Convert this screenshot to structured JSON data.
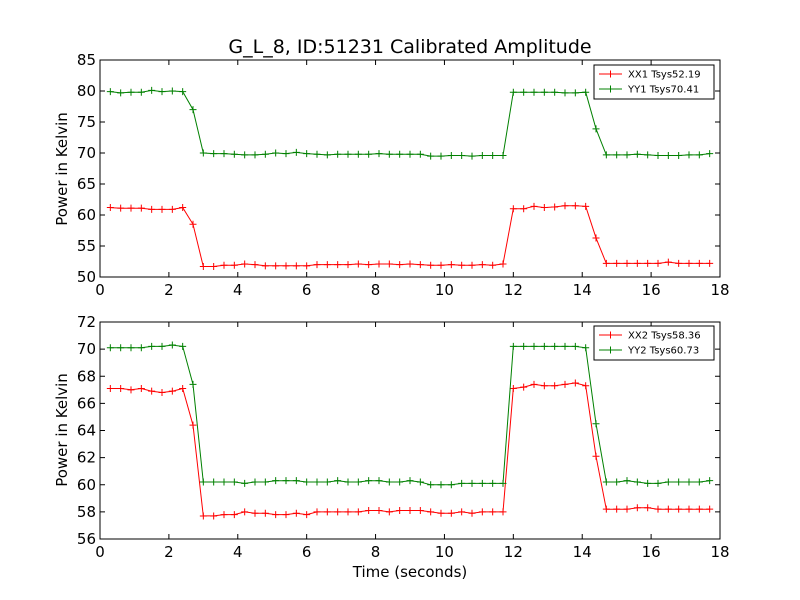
{
  "chart_data": [
    {
      "type": "line",
      "title": "G_L_8, ID:51231 Calibrated Amplitude",
      "xlabel": "",
      "ylabel": "Power in Kelvin",
      "xlim": [
        0,
        18
      ],
      "ylim": [
        50,
        85
      ],
      "xticks": [
        0,
        2,
        4,
        6,
        8,
        10,
        12,
        14,
        16,
        18
      ],
      "yticks": [
        50,
        55,
        60,
        65,
        70,
        75,
        80,
        85
      ],
      "legend_position": "top-right",
      "series": [
        {
          "name": "XX1 Tsys52.19",
          "color": "#ff0000",
          "x": [
            0.3,
            0.6,
            0.9,
            1.2,
            1.5,
            1.8,
            2.1,
            2.4,
            2.7,
            3.0,
            3.3,
            3.6,
            3.9,
            4.2,
            4.5,
            4.8,
            5.1,
            5.4,
            5.7,
            6.0,
            6.3,
            6.6,
            6.9,
            7.2,
            7.5,
            7.8,
            8.1,
            8.4,
            8.7,
            9.0,
            9.3,
            9.6,
            9.9,
            10.2,
            10.5,
            10.8,
            11.1,
            11.4,
            11.7,
            12.0,
            12.3,
            12.6,
            12.9,
            13.2,
            13.5,
            13.8,
            14.1,
            14.4,
            14.7,
            15.0,
            15.3,
            15.6,
            15.9,
            16.2,
            16.5,
            16.8,
            17.1,
            17.4,
            17.7
          ],
          "y": [
            61.2,
            61.1,
            61.1,
            61.1,
            60.9,
            60.9,
            60.9,
            61.2,
            58.5,
            51.7,
            51.7,
            51.9,
            51.9,
            52.1,
            52.0,
            51.8,
            51.8,
            51.8,
            51.8,
            51.8,
            52.0,
            52.0,
            52.0,
            52.0,
            52.1,
            52.0,
            52.1,
            52.1,
            52.0,
            52.1,
            52.0,
            51.9,
            51.9,
            52.0,
            51.9,
            51.9,
            52.0,
            51.9,
            52.1,
            61.0,
            61.0,
            61.4,
            61.2,
            61.3,
            61.5,
            61.5,
            61.4,
            56.3,
            52.2,
            52.2,
            52.2,
            52.2,
            52.2,
            52.2,
            52.4,
            52.2,
            52.2,
            52.2,
            52.2
          ]
        },
        {
          "name": "YY1 Tsys70.41",
          "color": "#008000",
          "x": [
            0.3,
            0.6,
            0.9,
            1.2,
            1.5,
            1.8,
            2.1,
            2.4,
            2.7,
            3.0,
            3.3,
            3.6,
            3.9,
            4.2,
            4.5,
            4.8,
            5.1,
            5.4,
            5.7,
            6.0,
            6.3,
            6.6,
            6.9,
            7.2,
            7.5,
            7.8,
            8.1,
            8.4,
            8.7,
            9.0,
            9.3,
            9.6,
            9.9,
            10.2,
            10.5,
            10.8,
            11.1,
            11.4,
            11.7,
            12.0,
            12.3,
            12.6,
            12.9,
            13.2,
            13.5,
            13.8,
            14.1,
            14.4,
            14.7,
            15.0,
            15.3,
            15.6,
            15.9,
            16.2,
            16.5,
            16.8,
            17.1,
            17.4,
            17.7
          ],
          "y": [
            79.9,
            79.7,
            79.8,
            79.8,
            80.1,
            79.9,
            80.0,
            79.9,
            77.0,
            70.0,
            69.9,
            69.9,
            69.8,
            69.7,
            69.7,
            69.8,
            70.0,
            69.9,
            70.1,
            69.9,
            69.8,
            69.7,
            69.8,
            69.8,
            69.8,
            69.8,
            69.9,
            69.8,
            69.8,
            69.8,
            69.8,
            69.5,
            69.5,
            69.6,
            69.6,
            69.5,
            69.6,
            69.6,
            69.6,
            79.8,
            79.8,
            79.8,
            79.8,
            79.8,
            79.7,
            79.7,
            79.8,
            73.9,
            69.7,
            69.7,
            69.7,
            69.8,
            69.7,
            69.6,
            69.6,
            69.6,
            69.7,
            69.7,
            69.9
          ]
        }
      ]
    },
    {
      "type": "line",
      "title": "",
      "xlabel": "Time (seconds)",
      "ylabel": "Power in Kelvin",
      "xlim": [
        0,
        18
      ],
      "ylim": [
        56,
        72
      ],
      "xticks": [
        0,
        2,
        4,
        6,
        8,
        10,
        12,
        14,
        16,
        18
      ],
      "yticks": [
        56,
        58,
        60,
        62,
        64,
        66,
        68,
        70,
        72
      ],
      "legend_position": "top-right",
      "series": [
        {
          "name": "XX2 Tsys58.36",
          "color": "#ff0000",
          "x": [
            0.3,
            0.6,
            0.9,
            1.2,
            1.5,
            1.8,
            2.1,
            2.4,
            2.7,
            3.0,
            3.3,
            3.6,
            3.9,
            4.2,
            4.5,
            4.8,
            5.1,
            5.4,
            5.7,
            6.0,
            6.3,
            6.6,
            6.9,
            7.2,
            7.5,
            7.8,
            8.1,
            8.4,
            8.7,
            9.0,
            9.3,
            9.6,
            9.9,
            10.2,
            10.5,
            10.8,
            11.1,
            11.4,
            11.7,
            12.0,
            12.3,
            12.6,
            12.9,
            13.2,
            13.5,
            13.8,
            14.1,
            14.4,
            14.7,
            15.0,
            15.3,
            15.6,
            15.9,
            16.2,
            16.5,
            16.8,
            17.1,
            17.4,
            17.7
          ],
          "y": [
            67.1,
            67.1,
            67.0,
            67.1,
            66.9,
            66.8,
            66.9,
            67.1,
            64.4,
            57.7,
            57.7,
            57.8,
            57.8,
            58.0,
            57.9,
            57.9,
            57.8,
            57.8,
            57.9,
            57.8,
            58.0,
            58.0,
            58.0,
            58.0,
            58.0,
            58.1,
            58.1,
            58.0,
            58.1,
            58.1,
            58.1,
            58.0,
            57.9,
            57.9,
            58.0,
            57.9,
            58.0,
            58.0,
            58.0,
            67.1,
            67.2,
            67.4,
            67.3,
            67.3,
            67.4,
            67.5,
            67.3,
            62.1,
            58.2,
            58.2,
            58.2,
            58.3,
            58.3,
            58.2,
            58.2,
            58.2,
            58.2,
            58.2,
            58.2
          ]
        },
        {
          "name": "YY2 Tsys60.73",
          "color": "#008000",
          "x": [
            0.3,
            0.6,
            0.9,
            1.2,
            1.5,
            1.8,
            2.1,
            2.4,
            2.7,
            3.0,
            3.3,
            3.6,
            3.9,
            4.2,
            4.5,
            4.8,
            5.1,
            5.4,
            5.7,
            6.0,
            6.3,
            6.6,
            6.9,
            7.2,
            7.5,
            7.8,
            8.1,
            8.4,
            8.7,
            9.0,
            9.3,
            9.6,
            9.9,
            10.2,
            10.5,
            10.8,
            11.1,
            11.4,
            11.7,
            12.0,
            12.3,
            12.6,
            12.9,
            13.2,
            13.5,
            13.8,
            14.1,
            14.4,
            14.7,
            15.0,
            15.3,
            15.6,
            15.9,
            16.2,
            16.5,
            16.8,
            17.1,
            17.4,
            17.7
          ],
          "y": [
            70.1,
            70.1,
            70.1,
            70.1,
            70.2,
            70.2,
            70.3,
            70.2,
            67.4,
            60.2,
            60.2,
            60.2,
            60.2,
            60.1,
            60.2,
            60.2,
            60.3,
            60.3,
            60.3,
            60.2,
            60.2,
            60.2,
            60.3,
            60.2,
            60.2,
            60.3,
            60.3,
            60.2,
            60.2,
            60.3,
            60.2,
            60.0,
            60.0,
            60.0,
            60.1,
            60.1,
            60.1,
            60.1,
            60.1,
            70.2,
            70.2,
            70.2,
            70.2,
            70.2,
            70.2,
            70.2,
            70.1,
            64.5,
            60.2,
            60.2,
            60.3,
            60.2,
            60.1,
            60.1,
            60.2,
            60.2,
            60.2,
            60.2,
            60.3
          ]
        }
      ]
    }
  ]
}
